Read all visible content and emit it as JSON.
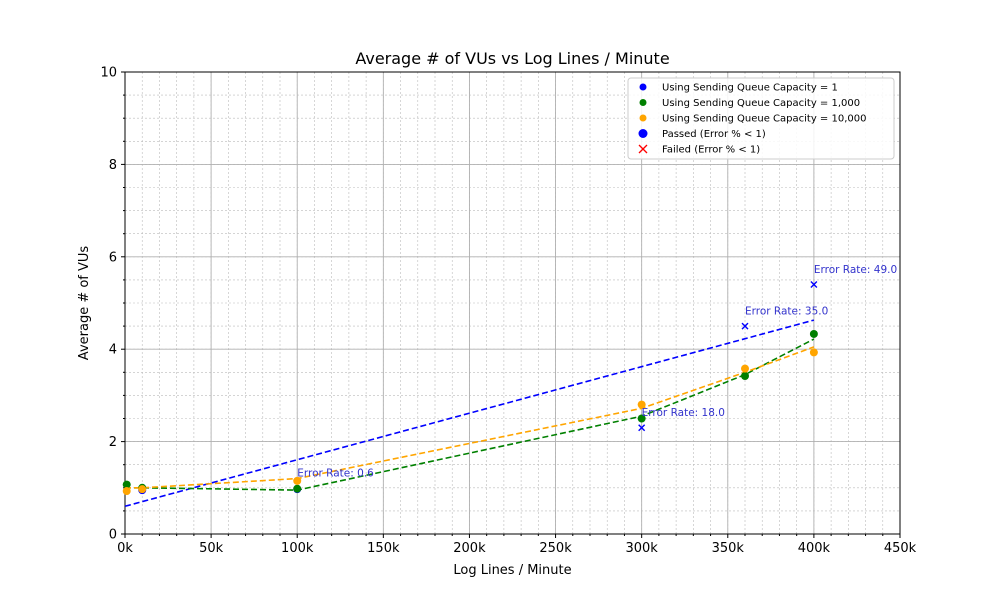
{
  "chart_data": {
    "type": "scatter",
    "title": "Average # of VUs vs Log Lines / Minute",
    "xlabel": "Log Lines / Minute",
    "ylabel": "Average # of VUs",
    "xlim": [
      0,
      450000
    ],
    "ylim": [
      0,
      10
    ],
    "x_ticks": [
      0,
      50000,
      100000,
      150000,
      200000,
      250000,
      300000,
      350000,
      400000,
      450000
    ],
    "x_tick_labels": [
      "0k",
      "50k",
      "100k",
      "150k",
      "200k",
      "250k",
      "300k",
      "350k",
      "400k",
      "450k"
    ],
    "y_ticks": [
      0,
      2,
      4,
      6,
      8,
      10
    ],
    "y_tick_labels": [
      "0",
      "2",
      "4",
      "6",
      "8",
      "10"
    ],
    "grid": "major and minor, dashed",
    "legend_position": "top-right",
    "series": [
      {
        "name": "Using Sending Queue Capacity = 1",
        "color": "#0000ff",
        "points": [
          {
            "x": 10000,
            "y": 0.95,
            "status": "passed"
          },
          {
            "x": 100000,
            "y": 0.97,
            "status": "passed"
          },
          {
            "x": 300000,
            "y": 2.3,
            "status": "failed",
            "error_rate": 18.0
          },
          {
            "x": 360000,
            "y": 4.5,
            "status": "failed",
            "error_rate": 35.0
          },
          {
            "x": 400000,
            "y": 5.4,
            "status": "failed",
            "error_rate": 49.0
          }
        ],
        "trend": {
          "x": [
            0,
            400000
          ],
          "y": [
            0.6,
            4.63
          ]
        }
      },
      {
        "name": "Using Sending Queue Capacity = 1,000",
        "color": "#008000",
        "points": [
          {
            "x": 1000,
            "y": 1.07,
            "status": "passed"
          },
          {
            "x": 10000,
            "y": 1.0,
            "status": "passed"
          },
          {
            "x": 100000,
            "y": 0.98,
            "status": "passed"
          },
          {
            "x": 300000,
            "y": 2.5,
            "status": "passed"
          },
          {
            "x": 360000,
            "y": 3.42,
            "status": "passed"
          },
          {
            "x": 400000,
            "y": 4.33,
            "status": "passed"
          }
        ],
        "trend": {
          "x": [
            0,
            10000,
            100000,
            300000,
            360000,
            400000
          ],
          "y": [
            1.0,
            1.0,
            0.95,
            2.55,
            3.45,
            4.22
          ]
        }
      },
      {
        "name": "Using Sending Queue Capacity = 10,000",
        "color": "#ffa500",
        "points": [
          {
            "x": 1000,
            "y": 0.93,
            "status": "passed"
          },
          {
            "x": 10000,
            "y": 0.97,
            "status": "passed"
          },
          {
            "x": 100000,
            "y": 1.15,
            "status": "passed"
          },
          {
            "x": 300000,
            "y": 2.8,
            "status": "passed"
          },
          {
            "x": 360000,
            "y": 3.58,
            "status": "passed"
          },
          {
            "x": 400000,
            "y": 3.93,
            "status": "passed"
          }
        ],
        "trend": {
          "x": [
            0,
            10000,
            100000,
            300000,
            360000,
            400000
          ],
          "y": [
            1.0,
            1.0,
            1.2,
            2.72,
            3.5,
            4.05
          ]
        }
      }
    ],
    "annotations": [
      {
        "text": "Error Rate: 0.6",
        "x": 100000,
        "y": 1.25,
        "color": "#3333cc"
      },
      {
        "text": "Error Rate: 18.0",
        "x": 300000,
        "y": 2.55,
        "color": "#3333cc"
      },
      {
        "text": "Error Rate: 35.0",
        "x": 360000,
        "y": 4.75,
        "color": "#3333cc"
      },
      {
        "text": "Error Rate: 49.0",
        "x": 400000,
        "y": 5.65,
        "color": "#3333cc"
      }
    ],
    "legend": [
      {
        "label": "Using Sending Queue Capacity = 1",
        "marker": "dot",
        "color": "#0000ff"
      },
      {
        "label": "Using Sending Queue Capacity = 1,000",
        "marker": "dot",
        "color": "#008000"
      },
      {
        "label": "Using Sending Queue Capacity = 10,000",
        "marker": "dot",
        "color": "#ffa500"
      },
      {
        "label": "Passed (Error % < 1)",
        "marker": "big-dot",
        "color": "#0000ff"
      },
      {
        "label": "Failed (Error % < 1)",
        "marker": "x",
        "color": "#ff0000"
      }
    ]
  }
}
